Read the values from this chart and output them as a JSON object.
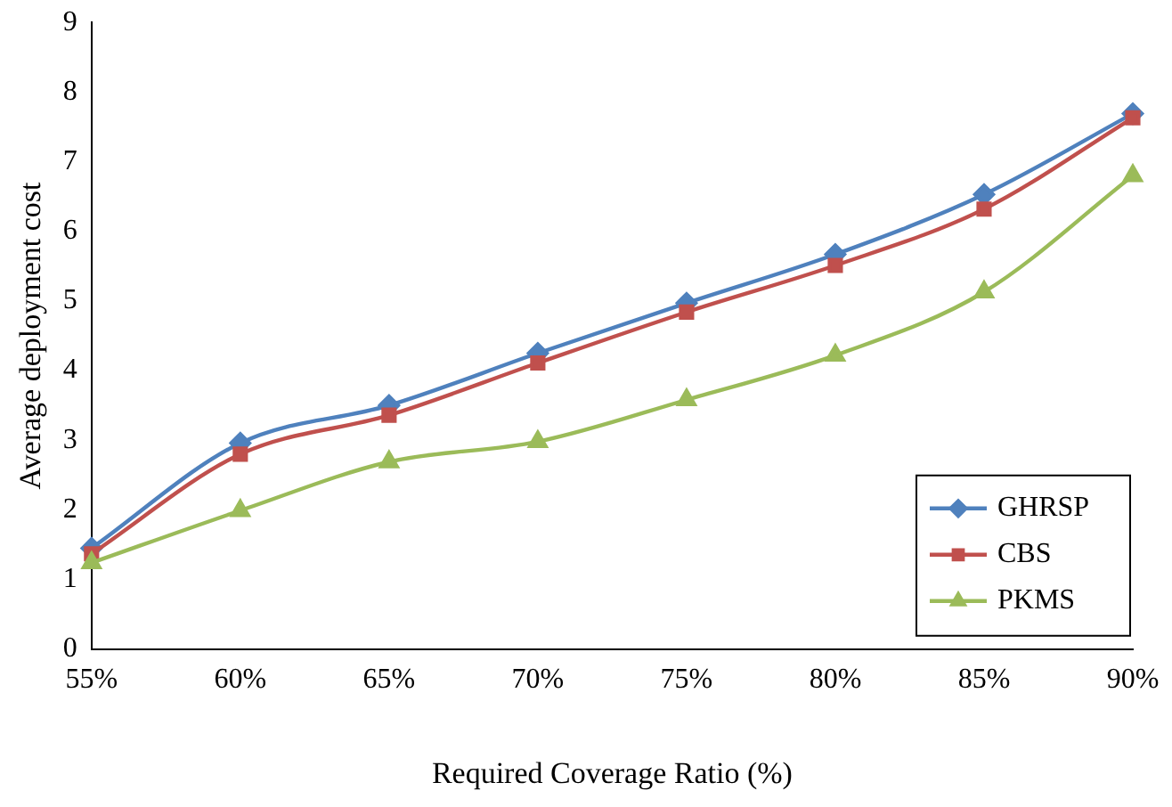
{
  "chart_data": {
    "type": "line",
    "xlabel": "Required Coverage Ratio (%)",
    "ylabel": "Average deployment cost",
    "categories": [
      "55%",
      "60%",
      "65%",
      "70%",
      "75%",
      "80%",
      "85%",
      "90%"
    ],
    "series": [
      {
        "name": "GHRSP",
        "color": "#4f81bd",
        "marker": "diamond",
        "values": [
          1.45,
          2.96,
          3.5,
          4.25,
          4.97,
          5.67,
          6.53,
          7.69
        ]
      },
      {
        "name": "CBS",
        "color": "#c0504d",
        "marker": "square",
        "values": [
          1.37,
          2.8,
          3.36,
          4.11,
          4.84,
          5.51,
          6.32,
          7.63
        ]
      },
      {
        "name": "PKMS",
        "color": "#9bbb59",
        "marker": "triangle",
        "values": [
          1.24,
          1.99,
          2.69,
          2.98,
          3.58,
          4.22,
          5.13,
          6.8
        ]
      }
    ],
    "ylim": [
      0,
      9
    ],
    "yticks": [
      0,
      1,
      2,
      3,
      4,
      5,
      6,
      7,
      8,
      9
    ],
    "grid": false,
    "legend": "bottom right",
    "line_style": "solid"
  }
}
